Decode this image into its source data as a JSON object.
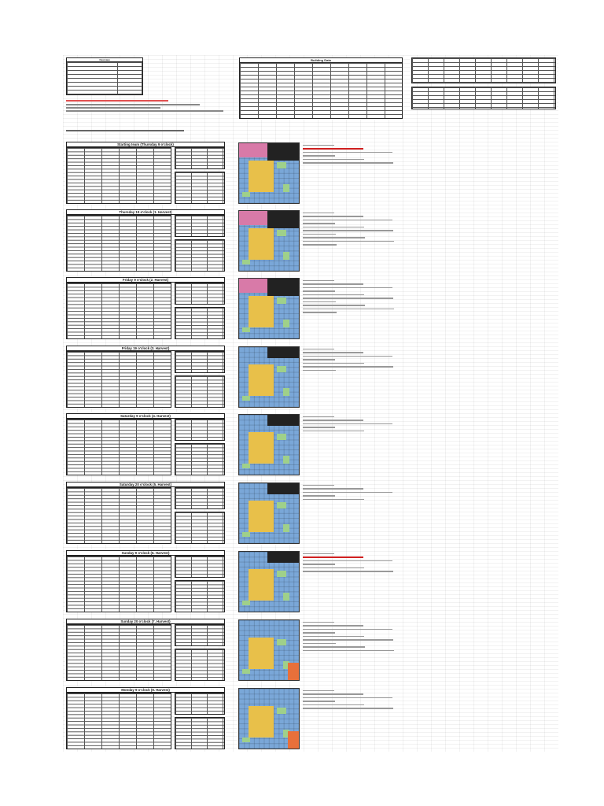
{
  "top_left": {
    "title": "Overview",
    "rows": [
      "",
      "",
      "",
      "",
      "",
      "",
      "",
      "",
      "",
      ""
    ],
    "notes": [
      "",
      "",
      "",
      ""
    ]
  },
  "building_data": {
    "title": "Building Data"
  },
  "top_right": {
    "labels": [
      "",
      "",
      ""
    ]
  },
  "intro_text": "",
  "sections": [
    {
      "title": "Starting team (Thursday 9 o'clock)"
    },
    {
      "title": "Thursday 19 o'clock (1. Harvest)"
    },
    {
      "title": "Friday 9 o'clock (2. Harvest)"
    },
    {
      "title": "Friday 19 o'clock (3. Harvest)"
    },
    {
      "title": "Saturday 9 o'clock (4. Harvest)"
    },
    {
      "title": "Saturday 20 o'clock (5. Harvest)"
    },
    {
      "title": "Sunday 9 o'clock (6. Harvest)"
    },
    {
      "title": "Sunday 20 o'clock (7. Harvest)"
    },
    {
      "title": "Monday 9 o'clock (8. Harvest)"
    }
  ],
  "colors": {
    "grass": "#7aa7d8",
    "plaza": "#e8c04a",
    "pink": "#d87aa8",
    "dark": "#222222",
    "green": "#9fd08a",
    "orange": "#e8703a"
  }
}
